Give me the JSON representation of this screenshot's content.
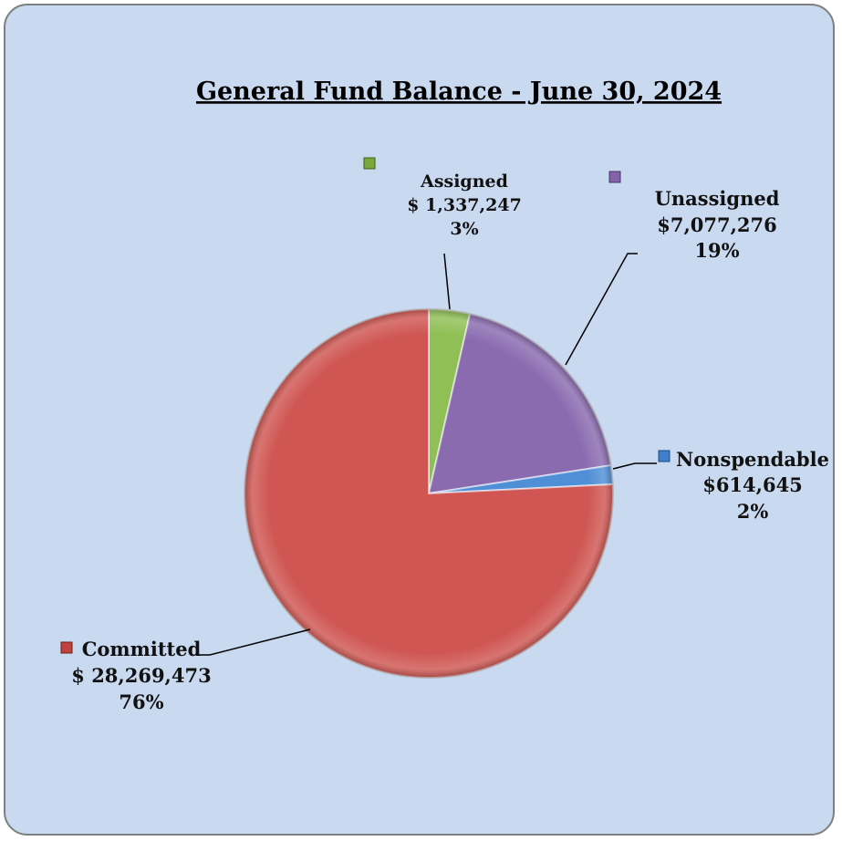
{
  "chart_data": {
    "type": "pie",
    "title": "General Fund Balance - June 30, 2024",
    "slices": [
      {
        "name": "Assigned",
        "value": 1337247,
        "value_label": "$ 1,337,247",
        "percent_label": "3%",
        "color": "#8fbf55"
      },
      {
        "name": "Unassigned",
        "value": 7077276,
        "value_label": "$7,077,276",
        "percent_label": "19%",
        "color": "#8a6bb0"
      },
      {
        "name": "Nonspendable",
        "value": 614645,
        "value_label": "$614,645",
        "percent_label": "2%",
        "color": "#4f8fd6"
      },
      {
        "name": "Committed",
        "value": 28269473,
        "value_label": "$ 28,269,473",
        "percent_label": "76%",
        "color": "#cf5652"
      }
    ],
    "start_angle_deg": 0,
    "direction": "clockwise"
  }
}
